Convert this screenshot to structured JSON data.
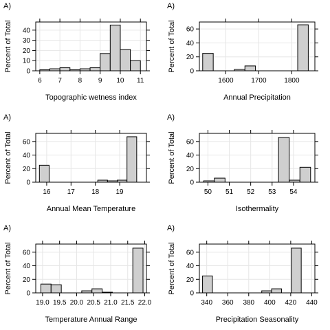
{
  "chart_data": [
    {
      "type": "bar",
      "panel_label": "A)",
      "title": "",
      "xlabel": "Topographic wetness index",
      "ylabel": "Percent of Total",
      "xlim": [
        5.8,
        11.3
      ],
      "ylim": [
        0,
        48
      ],
      "x_ticks": [
        6,
        7,
        8,
        9,
        10,
        11
      ],
      "x_tick_labels": [
        "6",
        "7",
        "8",
        "9",
        "10",
        "11"
      ],
      "y_ticks": [
        0,
        10,
        20,
        30,
        40
      ],
      "y_tick_labels": [
        "0",
        "10",
        "20",
        "30",
        "40"
      ],
      "bin_edges": [
        6,
        6.5,
        7,
        7.5,
        8,
        8.5,
        9,
        9.5,
        10,
        10.5,
        11
      ],
      "values": [
        1,
        2,
        3,
        1,
        2,
        3,
        17,
        45,
        21,
        10
      ],
      "grid": true
    },
    {
      "type": "bar",
      "panel_label": "A)",
      "title": "",
      "xlabel": "Annual Precipitation",
      "ylabel": "Percent of Total",
      "xlim": [
        1520,
        1870
      ],
      "ylim": [
        0,
        70
      ],
      "x_ticks": [
        1600,
        1700,
        1800
      ],
      "x_tick_labels": [
        "1600",
        "1700",
        "1800"
      ],
      "y_ticks": [
        0,
        20,
        40,
        60
      ],
      "y_tick_labels": [
        "0",
        "20",
        "40",
        "60"
      ],
      "bin_edges": [
        1530,
        1562,
        1594,
        1626,
        1658,
        1690,
        1722,
        1754,
        1786,
        1818,
        1850
      ],
      "values": [
        25,
        0,
        0,
        2,
        7,
        0,
        0,
        0,
        0,
        66
      ],
      "grid": true
    },
    {
      "type": "bar",
      "panel_label": "A)",
      "title": "",
      "xlabel": "Annual Mean Temperature",
      "ylabel": "Percent of Total",
      "xlim": [
        15.55,
        20.1
      ],
      "ylim": [
        0,
        72
      ],
      "x_ticks": [
        16,
        17,
        18,
        19
      ],
      "x_tick_labels": [
        "16",
        "17",
        "18",
        "19"
      ],
      "y_ticks": [
        0,
        20,
        40,
        60
      ],
      "y_tick_labels": [
        "0",
        "20",
        "40",
        "60"
      ],
      "bin_edges": [
        15.7,
        16.1,
        16.5,
        16.9,
        17.3,
        17.7,
        18.1,
        18.5,
        18.9,
        19.3,
        19.7
      ],
      "values": [
        25,
        0,
        0,
        0,
        0,
        0,
        3,
        2,
        3,
        67
      ],
      "grid": true
    },
    {
      "type": "bar",
      "panel_label": "A)",
      "title": "",
      "xlabel": "Isothermality",
      "ylabel": "Percent of Total",
      "xlim": [
        49.6,
        55.0
      ],
      "ylim": [
        0,
        72
      ],
      "x_ticks": [
        50,
        51,
        52,
        53,
        54
      ],
      "x_tick_labels": [
        "50",
        "51",
        "52",
        "53",
        "54"
      ],
      "y_ticks": [
        0,
        20,
        40,
        60
      ],
      "y_tick_labels": [
        "0",
        "20",
        "40",
        "60"
      ],
      "bin_edges": [
        49.8,
        50.3,
        50.8,
        51.3,
        51.8,
        52.3,
        52.8,
        53.3,
        53.8,
        54.3,
        54.8
      ],
      "values": [
        2,
        6,
        0,
        0,
        0,
        0,
        0,
        66,
        3,
        22
      ],
      "grid": true
    },
    {
      "type": "bar",
      "panel_label": "A)",
      "title": "",
      "xlabel": "Temperature Annual Range",
      "ylabel": "Percent of Total",
      "xlim": [
        18.8,
        22.05
      ],
      "ylim": [
        0,
        72
      ],
      "x_ticks": [
        19.0,
        19.5,
        20.0,
        20.5,
        21.0,
        21.5,
        22.0
      ],
      "x_tick_labels": [
        "19.0",
        "19.5",
        "20.0",
        "20.5",
        "21.0",
        "21.5",
        "22.0"
      ],
      "y_ticks": [
        0,
        20,
        40,
        60
      ],
      "y_tick_labels": [
        "0",
        "20",
        "40",
        "60"
      ],
      "bin_edges": [
        18.95,
        19.25,
        19.55,
        19.85,
        20.15,
        20.45,
        20.75,
        21.05,
        21.35,
        21.65,
        21.95
      ],
      "values": [
        13,
        12,
        0,
        0,
        3,
        6,
        1,
        0,
        0,
        66
      ],
      "grid": true
    },
    {
      "type": "bar",
      "panel_label": "A)",
      "title": "",
      "xlabel": "Precipitation Seasonality",
      "ylabel": "Percent of Total",
      "xlim": [
        333,
        443
      ],
      "ylim": [
        0,
        72
      ],
      "x_ticks": [
        340,
        360,
        380,
        400,
        420,
        440
      ],
      "x_tick_labels": [
        "340",
        "360",
        "380",
        "400",
        "420",
        "440"
      ],
      "y_ticks": [
        0,
        20,
        40,
        60
      ],
      "y_tick_labels": [
        "0",
        "20",
        "40",
        "60"
      ],
      "bin_edges": [
        336,
        345.4,
        354.8,
        364.2,
        373.6,
        383,
        392.4,
        401.8,
        411.2,
        420.6,
        430
      ],
      "values": [
        25,
        0,
        0,
        0,
        0,
        0,
        3,
        6,
        0,
        66
      ],
      "grid": true
    }
  ]
}
